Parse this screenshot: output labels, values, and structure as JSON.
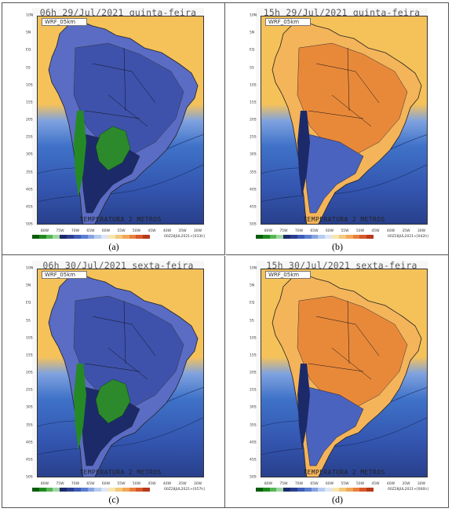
{
  "panels": [
    {
      "title": "06h 29/Jul/2021 quinta-feira",
      "model": "WRF_05km",
      "variable": "TEMPERATURA 2 METROS",
      "run_stamp": "00Z28JUL2021+[033h]",
      "letter": "(a)",
      "regime": "night-early"
    },
    {
      "title": "15h 29/Jul/2021 quinta-feira",
      "model": "WRF_05km",
      "variable": "TEMPERATURA 2 METROS",
      "run_stamp": "00Z28JUL2021+[042h]",
      "letter": "(b)",
      "regime": "day"
    },
    {
      "title": "06h 30/Jul/2021 sexta-feira",
      "model": "WRF_05km",
      "variable": "TEMPERATURA 2 METROS",
      "run_stamp": "00Z28JUL2021+[057h]",
      "letter": "(c)",
      "regime": "night"
    },
    {
      "title": "15h 30/Jul/2021 sexta-feira",
      "model": "WRF_05km",
      "variable": "TEMPERATURA 2 METROS",
      "run_stamp": "00Z28JUL2021+[066h]",
      "letter": "(d)",
      "regime": "day"
    }
  ],
  "lat_ticks": [
    "10N",
    "5N",
    "EQ",
    "5S",
    "10S",
    "15S",
    "20S",
    "25S",
    "30S",
    "35S",
    "40S",
    "45S",
    "50S"
  ],
  "lon_ticks": [
    "80W",
    "75W",
    "70W",
    "65W",
    "60W",
    "55W",
    "50W",
    "45W",
    "40W",
    "35W",
    "30W"
  ],
  "colors": {
    "ocean_warm": "#f5c25a",
    "ocean_mild": "#3f72c8",
    "ocean_cold": "#283f8a",
    "land_cold": "#1c2a6a",
    "land_cool": "#5a6cc4",
    "land_frost": "#2c8a2c",
    "land_hot": "#e8893a",
    "land_warm": "#f4b45a",
    "colorbar": [
      "#0a5c0a",
      "#1e8a1e",
      "#56b656",
      "#9ed69e",
      "#1c2a6a",
      "#2a3f92",
      "#3e5cb8",
      "#5a7ed0",
      "#86a4e0",
      "#b6ccef",
      "#dde6f6",
      "#f6e6b0",
      "#f4c878",
      "#f0a858",
      "#e8803a",
      "#d8582a",
      "#b83a1a"
    ]
  }
}
